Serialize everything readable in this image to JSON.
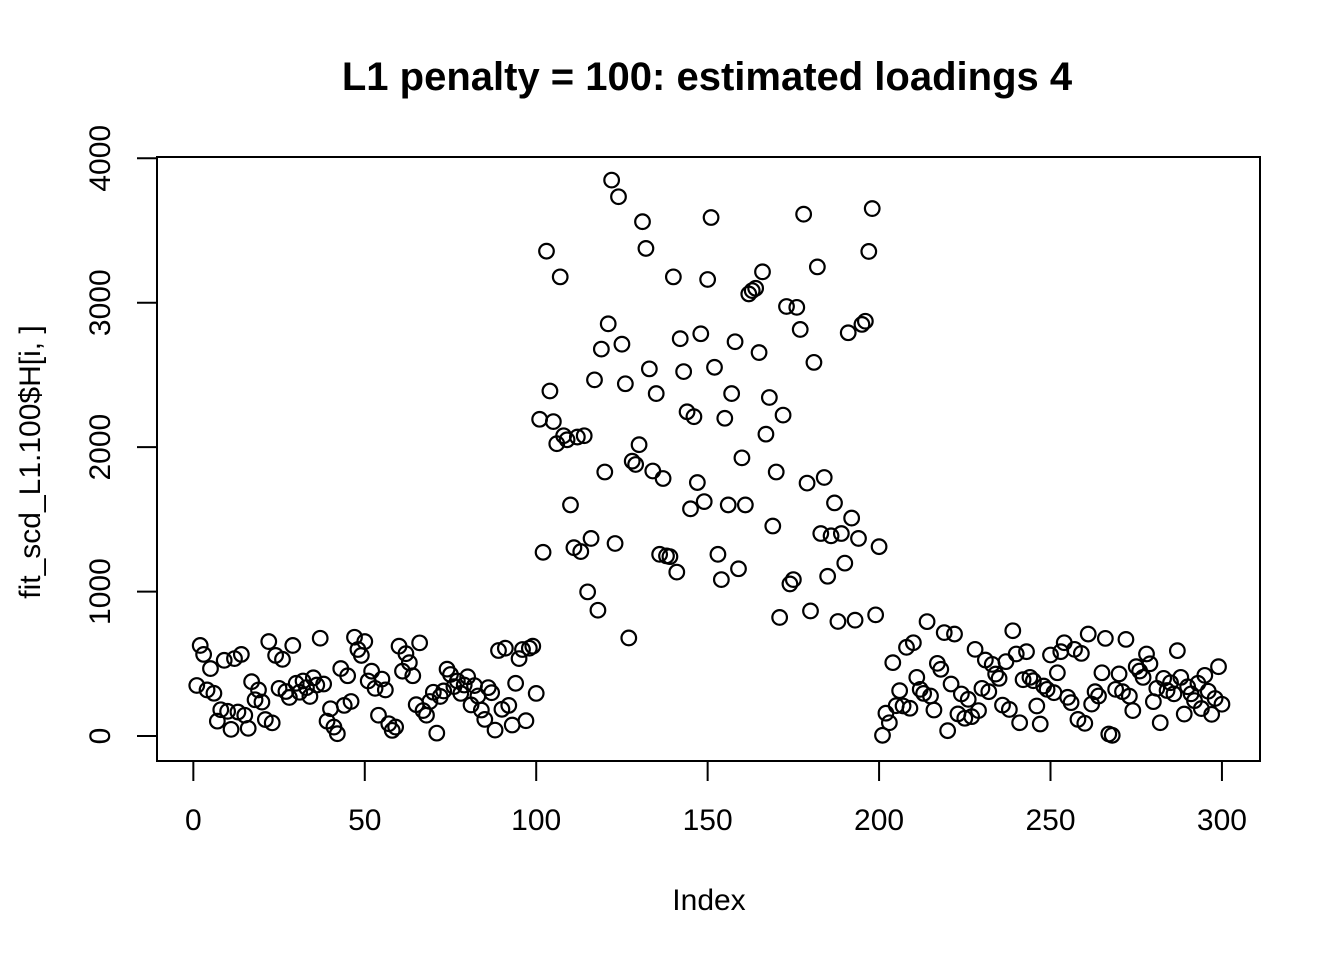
{
  "chart_data": {
    "type": "scatter",
    "title": "L1 penalty = 100: estimated loadings 4",
    "xlabel": "Index",
    "ylabel": "fit_scd_L1.100$H[i, ]",
    "marker": "open-circle",
    "marker_color": "#000000",
    "background_color": "#ffffff",
    "grid": "off",
    "legend": "none",
    "n_points": 300,
    "x_ticks": [
      0,
      50,
      100,
      150,
      200,
      250,
      300
    ],
    "y_ticks": [
      0,
      1000,
      2000,
      3000,
      4000
    ],
    "xlim": [
      -10.6,
      311.1
    ],
    "ylim": [
      -173,
      4009
    ],
    "x_description": "x = Index, integers 1..300 (one point per index)",
    "points": {
      "x_start": 1,
      "y": [
        350,
        627,
        565,
        319,
        467,
        296,
        103,
        182,
        524,
        171,
        46,
        536,
        166,
        565,
        144,
        53,
        376,
        251,
        319,
        235,
        114,
        654,
        91,
        558,
        330,
        531,
        308,
        267,
        627,
        365,
        303,
        381,
        335,
        274,
        403,
        353,
        677,
        360,
        103,
        189,
        62,
        16,
        467,
        212,
        417,
        239,
        684,
        599,
        558,
        654,
        381,
        449,
        330,
        144,
        394,
        319,
        85,
        39,
        62,
        622,
        449,
        570,
        508,
        417,
        217,
        645,
        176,
        144,
        239,
        303,
        20,
        274,
        312,
        463,
        426,
        342,
        381,
        295,
        353,
        410,
        215,
        349,
        277,
        180,
        115,
        335,
        300,
        41,
        592,
        185,
        608,
        212,
        76,
        365,
        536,
        599,
        106,
        608,
        622,
        295,
        2193,
        1272,
        3357,
        2389,
        2177,
        2024,
        3179,
        2079,
        2051,
        1600,
        1304,
        2070,
        1277,
        2079,
        998,
        1368,
        2466,
        871,
        2679,
        1828,
        2854,
        3849,
        1333,
        3734,
        2713,
        2439,
        679,
        1903,
        1880,
        2017,
        3561,
        3376,
        2542,
        1835,
        2371,
        1258,
        1783,
        1247,
        1242,
        3179,
        1135,
        2751,
        2523,
        2245,
        1573,
        2211,
        1755,
        2785,
        1623,
        3161,
        3590,
        2553,
        1258,
        1083,
        2200,
        1600,
        2371,
        2730,
        1158,
        1926,
        1600,
        3061,
        3084,
        3100,
        2655,
        3214,
        2090,
        2344,
        1454,
        1828,
        821,
        2222,
        2974,
        1053,
        1083,
        2968,
        2815,
        3613,
        1751,
        866,
        2587,
        3248,
        1402,
        1790,
        1106,
        1386,
        1614,
        793,
        1402,
        1197,
        2792,
        1509,
        802,
        1368,
        2850,
        2872,
        3355,
        3652,
        839,
        1311,
        5,
        158,
        92,
        508,
        210,
        314,
        208,
        614,
        192,
        646,
        406,
        323,
        295,
        792,
        277,
        180,
        503,
        462,
        716,
        37,
        360,
        706,
        153,
        291,
        123,
        254,
        134,
        600,
        176,
        330,
        526,
        307,
        496,
        429,
        399,
        214,
        515,
        184,
        729,
        568,
        92,
        390,
        584,
        406,
        383,
        208,
        83,
        346,
        323,
        561,
        300,
        438,
        584,
        646,
        268,
        231,
        600,
        115,
        572,
        88,
        706,
        221,
        307,
        277,
        438,
        676,
        14,
        5,
        323,
        430,
        307,
        669,
        276,
        176,
        480,
        450,
        406,
        568,
        500,
        238,
        330,
        92,
        399,
        315,
        369,
        292,
        591,
        406,
        152,
        341,
        292,
        245,
        365,
        190,
        420,
        310,
        150,
        260,
        480,
        220
      ]
    }
  }
}
